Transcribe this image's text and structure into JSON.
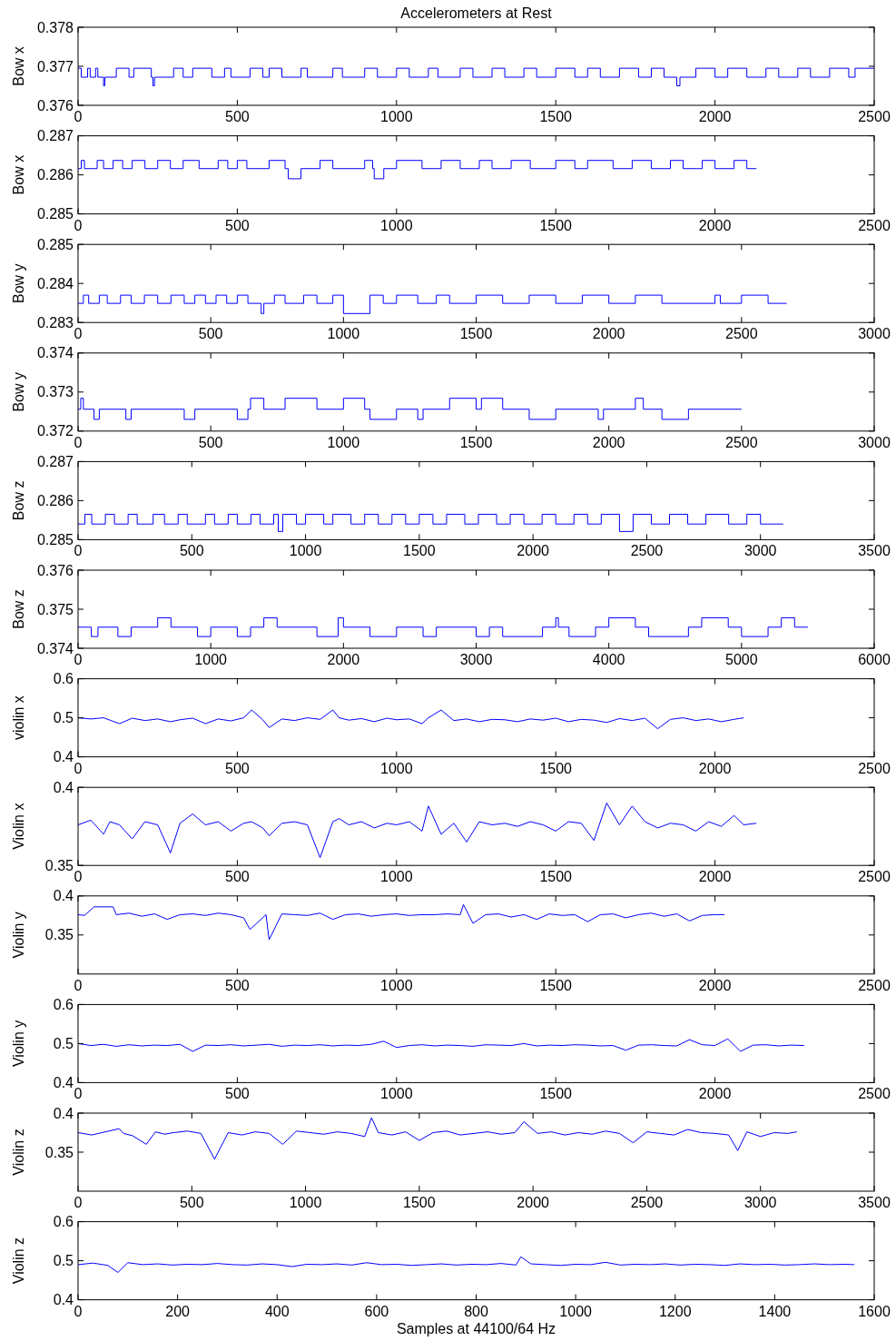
{
  "chart_data": [
    {
      "type": "step",
      "title": "Accelerometers at Rest",
      "ylabel": "Bow x",
      "xlim": [
        0,
        2500
      ],
      "xticks": [
        0,
        500,
        1000,
        1500,
        2000,
        2500
      ],
      "ylim": [
        0.376,
        0.378
      ],
      "yticks": [
        0.376,
        0.377,
        0.378
      ],
      "series": [
        {
          "color": "#0000ff",
          "x": [
            0,
            10,
            30,
            38,
            55,
            62,
            80,
            84,
            120,
            160,
            175,
            230,
            235,
            240,
            300,
            330,
            360,
            420,
            460,
            480,
            540,
            580,
            600,
            640,
            700,
            720,
            800,
            830,
            900,
            940,
            1000,
            1040,
            1100,
            1130,
            1200,
            1240,
            1300,
            1340,
            1400,
            1440,
            1500,
            1560,
            1600,
            1640,
            1700,
            1760,
            1800,
            1840,
            1880,
            1890,
            1940,
            2000,
            2040,
            2100,
            2160,
            2200,
            2260,
            2300,
            2360,
            2420,
            2440,
            2500
          ],
          "values": [
            0.37695,
            0.37672,
            0.37695,
            0.37672,
            0.37695,
            0.37672,
            0.3765,
            0.37672,
            0.37695,
            0.37672,
            0.37695,
            0.37672,
            0.3765,
            0.37672,
            0.37695,
            0.37672,
            0.37695,
            0.37672,
            0.37695,
            0.37672,
            0.37695,
            0.37672,
            0.37695,
            0.37672,
            0.37695,
            0.37672,
            0.37695,
            0.37672,
            0.37695,
            0.37672,
            0.37695,
            0.37672,
            0.37695,
            0.37672,
            0.37695,
            0.37672,
            0.37695,
            0.37672,
            0.37695,
            0.37672,
            0.37695,
            0.37672,
            0.37695,
            0.37672,
            0.37695,
            0.37672,
            0.37695,
            0.37672,
            0.3765,
            0.37672,
            0.37695,
            0.37672,
            0.37695,
            0.37672,
            0.37695,
            0.37672,
            0.37695,
            0.37672,
            0.37695,
            0.37672,
            0.37695,
            0.37695
          ]
        }
      ]
    },
    {
      "type": "step",
      "ylabel": "Bow x",
      "xlim": [
        0,
        2500
      ],
      "xticks": [
        0,
        500,
        1000,
        1500,
        2000,
        2500
      ],
      "ylim": [
        0.285,
        0.287
      ],
      "yticks": [
        0.285,
        0.286,
        0.287
      ],
      "series": [
        {
          "color": "#0000ff",
          "x": [
            0,
            10,
            20,
            60,
            80,
            110,
            140,
            170,
            210,
            250,
            290,
            330,
            380,
            440,
            470,
            500,
            530,
            600,
            650,
            660,
            700,
            760,
            800,
            900,
            925,
            930,
            960,
            1000,
            1080,
            1140,
            1200,
            1260,
            1300,
            1360,
            1420,
            1500,
            1560,
            1600,
            1680,
            1740,
            1800,
            1860,
            1900,
            1960,
            2000,
            2060,
            2100,
            2130
          ],
          "values": [
            0.28616,
            0.28637,
            0.28616,
            0.28637,
            0.28616,
            0.28637,
            0.28616,
            0.28637,
            0.28616,
            0.28637,
            0.28616,
            0.28637,
            0.28616,
            0.28637,
            0.28616,
            0.28637,
            0.28616,
            0.28637,
            0.28616,
            0.2859,
            0.28616,
            0.28637,
            0.28616,
            0.28637,
            0.28616,
            0.2859,
            0.28616,
            0.28637,
            0.28616,
            0.28637,
            0.28616,
            0.28637,
            0.28616,
            0.28637,
            0.28616,
            0.28637,
            0.28616,
            0.28637,
            0.28616,
            0.28637,
            0.28616,
            0.28637,
            0.28616,
            0.28637,
            0.28616,
            0.28637,
            0.28616,
            0.28616
          ]
        }
      ]
    },
    {
      "type": "step",
      "ylabel": "Bow y",
      "xlim": [
        0,
        3000
      ],
      "xticks": [
        0,
        500,
        1000,
        1500,
        2000,
        2500,
        3000
      ],
      "ylim": [
        0.283,
        0.285
      ],
      "yticks": [
        0.283,
        0.284,
        0.285
      ],
      "series": [
        {
          "color": "#0000ff",
          "x": [
            0,
            20,
            40,
            80,
            110,
            160,
            200,
            250,
            300,
            350,
            400,
            440,
            480,
            520,
            560,
            600,
            640,
            690,
            700,
            740,
            780,
            850,
            900,
            960,
            1000,
            1100,
            1150,
            1200,
            1280,
            1350,
            1400,
            1500,
            1600,
            1700,
            1800,
            1900,
            2000,
            2100,
            2200,
            2400,
            2420,
            2500,
            2600,
            2670
          ],
          "values": [
            0.28349,
            0.2837,
            0.28349,
            0.2837,
            0.28349,
            0.2837,
            0.28349,
            0.2837,
            0.28349,
            0.2837,
            0.28349,
            0.2837,
            0.28349,
            0.2837,
            0.28349,
            0.2837,
            0.28349,
            0.28323,
            0.28349,
            0.2837,
            0.28349,
            0.2837,
            0.28349,
            0.2837,
            0.28323,
            0.2837,
            0.28349,
            0.2837,
            0.28349,
            0.2837,
            0.28349,
            0.2837,
            0.28349,
            0.2837,
            0.28349,
            0.2837,
            0.28349,
            0.2837,
            0.28349,
            0.2837,
            0.28349,
            0.2837,
            0.28349,
            0.28349
          ]
        }
      ]
    },
    {
      "type": "step",
      "ylabel": "Bow y",
      "xlim": [
        0,
        3000
      ],
      "xticks": [
        0,
        500,
        1000,
        1500,
        2000,
        2500,
        3000
      ],
      "ylim": [
        0.372,
        0.374
      ],
      "yticks": [
        0.372,
        0.373,
        0.374
      ],
      "series": [
        {
          "color": "#0000ff",
          "x": [
            0,
            10,
            20,
            60,
            80,
            180,
            200,
            400,
            440,
            600,
            640,
            650,
            700,
            780,
            900,
            1000,
            1080,
            1100,
            1200,
            1280,
            1300,
            1400,
            1500,
            1520,
            1600,
            1700,
            1800,
            1960,
            1980,
            2100,
            2130,
            2200,
            2300,
            2500
          ],
          "values": [
            0.37256,
            0.37284,
            0.37256,
            0.3723,
            0.37256,
            0.3723,
            0.37256,
            0.3723,
            0.37256,
            0.3723,
            0.37256,
            0.37284,
            0.37256,
            0.37284,
            0.37256,
            0.37284,
            0.37256,
            0.3723,
            0.37256,
            0.3723,
            0.37256,
            0.37284,
            0.37256,
            0.37284,
            0.37256,
            0.3723,
            0.37256,
            0.3723,
            0.37256,
            0.37284,
            0.37256,
            0.3723,
            0.37256,
            0.37256
          ]
        }
      ]
    },
    {
      "type": "step",
      "ylabel": "Bow z",
      "xlim": [
        0,
        3500
      ],
      "xticks": [
        0,
        500,
        1000,
        1500,
        2000,
        2500,
        3000,
        3500
      ],
      "ylim": [
        0.285,
        0.287
      ],
      "yticks": [
        0.285,
        0.286,
        0.287
      ],
      "series": [
        {
          "color": "#0000ff",
          "x": [
            0,
            30,
            60,
            120,
            160,
            220,
            260,
            330,
            380,
            440,
            480,
            560,
            600,
            660,
            700,
            760,
            800,
            860,
            880,
            900,
            960,
            1000,
            1080,
            1120,
            1200,
            1260,
            1320,
            1380,
            1440,
            1500,
            1560,
            1620,
            1700,
            1760,
            1840,
            1900,
            1960,
            2040,
            2100,
            2180,
            2240,
            2300,
            2380,
            2440,
            2520,
            2600,
            2680,
            2760,
            2860,
            2940,
            3000,
            3100
          ],
          "values": [
            0.2854,
            0.28565,
            0.2854,
            0.28565,
            0.2854,
            0.28565,
            0.2854,
            0.28565,
            0.2854,
            0.28565,
            0.2854,
            0.28565,
            0.2854,
            0.28565,
            0.2854,
            0.28565,
            0.2854,
            0.28565,
            0.28521,
            0.28565,
            0.2854,
            0.28565,
            0.2854,
            0.28565,
            0.2854,
            0.28565,
            0.2854,
            0.28565,
            0.2854,
            0.28565,
            0.2854,
            0.28565,
            0.2854,
            0.28565,
            0.2854,
            0.28565,
            0.2854,
            0.28565,
            0.2854,
            0.28565,
            0.2854,
            0.28565,
            0.28521,
            0.28565,
            0.2854,
            0.28565,
            0.2854,
            0.28565,
            0.2854,
            0.28565,
            0.2854,
            0.2854
          ]
        }
      ]
    },
    {
      "type": "step",
      "ylabel": "Bow z",
      "xlim": [
        0,
        6000
      ],
      "xticks": [
        0,
        1000,
        2000,
        3000,
        4000,
        5000,
        6000
      ],
      "ylim": [
        0.374,
        0.376
      ],
      "yticks": [
        0.374,
        0.375,
        0.376
      ],
      "series": [
        {
          "color": "#0000ff",
          "x": [
            0,
            100,
            150,
            300,
            400,
            600,
            700,
            900,
            1000,
            1200,
            1300,
            1400,
            1500,
            1800,
            1960,
            2000,
            2200,
            2400,
            2600,
            2700,
            3000,
            3100,
            3200,
            3500,
            3600,
            3620,
            3700,
            3900,
            4000,
            4200,
            4300,
            4600,
            4700,
            4900,
            5000,
            5200,
            5300,
            5400,
            5500
          ],
          "values": [
            0.37454,
            0.3743,
            0.37454,
            0.3743,
            0.37454,
            0.37478,
            0.37454,
            0.3743,
            0.37454,
            0.3743,
            0.37454,
            0.37478,
            0.37454,
            0.3743,
            0.37478,
            0.37454,
            0.3743,
            0.37454,
            0.3743,
            0.37454,
            0.3743,
            0.37454,
            0.3743,
            0.37454,
            0.37478,
            0.37454,
            0.3743,
            0.37454,
            0.37478,
            0.37454,
            0.3743,
            0.37454,
            0.37478,
            0.37454,
            0.3743,
            0.37454,
            0.37478,
            0.37454,
            0.37454
          ]
        }
      ]
    },
    {
      "type": "line",
      "ylabel": "violin x",
      "xlim": [
        0,
        2500
      ],
      "xticks": [
        0,
        500,
        1000,
        1500,
        2000,
        2500
      ],
      "ylim": [
        0.4,
        0.6
      ],
      "yticks": [
        0.4,
        0.5,
        0.6
      ],
      "series": [
        {
          "color": "#0000ff",
          "x": [
            0,
            40,
            80,
            100,
            130,
            170,
            210,
            250,
            290,
            320,
            360,
            400,
            440,
            480,
            520,
            545,
            580,
            600,
            640,
            680,
            720,
            760,
            800,
            820,
            850,
            890,
            930,
            970,
            1000,
            1040,
            1080,
            1100,
            1140,
            1180,
            1220,
            1260,
            1300,
            1340,
            1380,
            1420,
            1460,
            1500,
            1540,
            1580,
            1620,
            1660,
            1700,
            1740,
            1780,
            1820,
            1860,
            1900,
            1940,
            1980,
            2020,
            2060,
            2090
          ],
          "values": [
            0.5,
            0.497,
            0.5,
            0.494,
            0.485,
            0.499,
            0.493,
            0.497,
            0.49,
            0.495,
            0.499,
            0.485,
            0.497,
            0.492,
            0.5,
            0.52,
            0.495,
            0.475,
            0.497,
            0.493,
            0.5,
            0.496,
            0.52,
            0.5,
            0.494,
            0.498,
            0.49,
            0.499,
            0.495,
            0.497,
            0.485,
            0.5,
            0.52,
            0.493,
            0.497,
            0.49,
            0.496,
            0.495,
            0.49,
            0.497,
            0.494,
            0.499,
            0.49,
            0.496,
            0.494,
            0.488,
            0.498,
            0.493,
            0.499,
            0.472,
            0.496,
            0.5,
            0.493,
            0.497,
            0.49,
            0.496,
            0.5
          ]
        }
      ]
    },
    {
      "type": "line",
      "ylabel": "Violin x",
      "xlim": [
        0,
        2500
      ],
      "xticks": [
        0,
        500,
        1000,
        1500,
        2000,
        2500
      ],
      "ylim": [
        0.35,
        0.4
      ],
      "yticks": [
        0.35,
        0.4
      ],
      "series": [
        {
          "color": "#0000ff",
          "x": [
            0,
            40,
            80,
            100,
            130,
            170,
            210,
            250,
            290,
            320,
            360,
            400,
            440,
            480,
            520,
            545,
            580,
            600,
            640,
            680,
            720,
            760,
            800,
            820,
            850,
            890,
            930,
            970,
            1000,
            1040,
            1080,
            1100,
            1140,
            1180,
            1220,
            1260,
            1300,
            1340,
            1380,
            1420,
            1460,
            1500,
            1540,
            1580,
            1620,
            1660,
            1700,
            1740,
            1780,
            1820,
            1860,
            1900,
            1940,
            1980,
            2020,
            2060,
            2090,
            2130
          ],
          "values": [
            0.376,
            0.379,
            0.37,
            0.378,
            0.376,
            0.367,
            0.378,
            0.376,
            0.358,
            0.377,
            0.383,
            0.376,
            0.378,
            0.372,
            0.377,
            0.378,
            0.374,
            0.369,
            0.377,
            0.378,
            0.376,
            0.355,
            0.378,
            0.38,
            0.376,
            0.378,
            0.374,
            0.377,
            0.376,
            0.378,
            0.372,
            0.388,
            0.37,
            0.377,
            0.365,
            0.378,
            0.376,
            0.377,
            0.375,
            0.378,
            0.376,
            0.372,
            0.378,
            0.377,
            0.366,
            0.39,
            0.376,
            0.388,
            0.378,
            0.374,
            0.377,
            0.376,
            0.372,
            0.378,
            0.375,
            0.382,
            0.376,
            0.377
          ]
        }
      ]
    },
    {
      "type": "line",
      "ylabel": "Violin y",
      "xlim": [
        0,
        2500
      ],
      "xticks": [
        0,
        500,
        1000,
        1500,
        2000,
        2500
      ],
      "ylim": [
        0.3,
        0.4
      ],
      "yticks": [
        0.35,
        0.4
      ],
      "series": [
        {
          "color": "#0000ff",
          "x": [
            0,
            20,
            50,
            110,
            120,
            160,
            200,
            240,
            280,
            320,
            360,
            400,
            440,
            480,
            520,
            540,
            590,
            600,
            640,
            680,
            720,
            760,
            800,
            840,
            880,
            920,
            960,
            1000,
            1040,
            1080,
            1120,
            1160,
            1200,
            1210,
            1240,
            1280,
            1320,
            1360,
            1400,
            1440,
            1480,
            1520,
            1560,
            1600,
            1640,
            1680,
            1720,
            1760,
            1800,
            1840,
            1880,
            1920,
            1960,
            2000,
            2030
          ],
          "values": [
            0.376,
            0.375,
            0.386,
            0.386,
            0.376,
            0.378,
            0.374,
            0.377,
            0.37,
            0.376,
            0.377,
            0.375,
            0.378,
            0.376,
            0.372,
            0.357,
            0.376,
            0.344,
            0.377,
            0.376,
            0.375,
            0.378,
            0.37,
            0.376,
            0.377,
            0.374,
            0.376,
            0.377,
            0.375,
            0.376,
            0.376,
            0.377,
            0.376,
            0.389,
            0.365,
            0.376,
            0.377,
            0.373,
            0.376,
            0.37,
            0.377,
            0.375,
            0.376,
            0.367,
            0.376,
            0.377,
            0.372,
            0.376,
            0.378,
            0.374,
            0.377,
            0.368,
            0.375,
            0.376,
            0.376
          ]
        }
      ]
    },
    {
      "type": "line",
      "ylabel": "Violin y",
      "xlim": [
        0,
        2500
      ],
      "xticks": [
        0,
        500,
        1000,
        1500,
        2000,
        2500
      ],
      "ylim": [
        0.4,
        0.6
      ],
      "yticks": [
        0.4,
        0.5,
        0.6
      ],
      "series": [
        {
          "color": "#0000ff",
          "x": [
            0,
            40,
            80,
            120,
            160,
            200,
            240,
            280,
            320,
            360,
            400,
            440,
            480,
            520,
            560,
            600,
            640,
            680,
            720,
            760,
            800,
            840,
            880,
            920,
            960,
            1000,
            1040,
            1080,
            1120,
            1160,
            1200,
            1240,
            1280,
            1320,
            1360,
            1400,
            1440,
            1480,
            1520,
            1560,
            1600,
            1640,
            1680,
            1720,
            1760,
            1800,
            1840,
            1880,
            1920,
            1960,
            2000,
            2040,
            2080,
            2120,
            2160,
            2200,
            2240,
            2280
          ],
          "values": [
            0.5,
            0.495,
            0.498,
            0.493,
            0.497,
            0.494,
            0.496,
            0.495,
            0.498,
            0.48,
            0.496,
            0.495,
            0.497,
            0.494,
            0.496,
            0.498,
            0.493,
            0.496,
            0.495,
            0.497,
            0.494,
            0.496,
            0.495,
            0.498,
            0.506,
            0.49,
            0.495,
            0.497,
            0.494,
            0.496,
            0.495,
            0.493,
            0.497,
            0.496,
            0.495,
            0.5,
            0.494,
            0.496,
            0.495,
            0.497,
            0.496,
            0.494,
            0.495,
            0.483,
            0.496,
            0.497,
            0.495,
            0.494,
            0.51,
            0.497,
            0.495,
            0.512,
            0.48,
            0.496,
            0.497,
            0.494,
            0.496,
            0.495
          ]
        }
      ]
    },
    {
      "type": "line",
      "ylabel": "Violin z",
      "xlim": [
        0,
        3500
      ],
      "xticks": [
        0,
        500,
        1000,
        1500,
        2000,
        2500,
        3000,
        3500
      ],
      "ylim": [
        0.3,
        0.4
      ],
      "yticks": [
        0.35,
        0.4
      ],
      "series": [
        {
          "color": "#0000ff",
          "x": [
            0,
            60,
            120,
            180,
            200,
            240,
            300,
            340,
            380,
            420,
            480,
            540,
            600,
            660,
            720,
            780,
            840,
            900,
            960,
            1020,
            1080,
            1140,
            1200,
            1260,
            1290,
            1320,
            1380,
            1440,
            1500,
            1560,
            1620,
            1680,
            1740,
            1800,
            1860,
            1920,
            1960,
            2020,
            2080,
            2140,
            2200,
            2260,
            2320,
            2380,
            2440,
            2500,
            2560,
            2620,
            2680,
            2740,
            2800,
            2860,
            2900,
            2940,
            3000,
            3060,
            3120,
            3160
          ],
          "values": [
            0.375,
            0.372,
            0.376,
            0.38,
            0.374,
            0.371,
            0.36,
            0.376,
            0.373,
            0.375,
            0.377,
            0.374,
            0.341,
            0.375,
            0.372,
            0.376,
            0.374,
            0.36,
            0.377,
            0.375,
            0.373,
            0.376,
            0.374,
            0.37,
            0.394,
            0.375,
            0.372,
            0.376,
            0.365,
            0.375,
            0.377,
            0.372,
            0.374,
            0.376,
            0.373,
            0.375,
            0.389,
            0.374,
            0.376,
            0.372,
            0.375,
            0.373,
            0.377,
            0.374,
            0.362,
            0.376,
            0.374,
            0.372,
            0.379,
            0.375,
            0.374,
            0.372,
            0.352,
            0.376,
            0.37,
            0.375,
            0.374,
            0.376
          ]
        }
      ]
    },
    {
      "type": "line",
      "ylabel": "Violin z",
      "xlabel": "Samples at 44100/64 Hz",
      "xlim": [
        0,
        1600
      ],
      "xticks": [
        0,
        200,
        400,
        600,
        800,
        1000,
        1200,
        1400,
        1600
      ],
      "ylim": [
        0.4,
        0.6
      ],
      "yticks": [
        0.4,
        0.5,
        0.6
      ],
      "series": [
        {
          "color": "#0000ff",
          "x": [
            0,
            30,
            60,
            80,
            100,
            130,
            160,
            190,
            220,
            250,
            280,
            310,
            340,
            370,
            400,
            430,
            460,
            490,
            520,
            550,
            580,
            610,
            640,
            670,
            700,
            730,
            760,
            790,
            820,
            850,
            880,
            890,
            910,
            940,
            970,
            1000,
            1030,
            1060,
            1090,
            1120,
            1150,
            1180,
            1210,
            1240,
            1270,
            1300,
            1330,
            1360,
            1390,
            1420,
            1450,
            1480,
            1510,
            1540,
            1560
          ],
          "values": [
            0.49,
            0.494,
            0.488,
            0.47,
            0.495,
            0.49,
            0.492,
            0.489,
            0.491,
            0.49,
            0.493,
            0.49,
            0.489,
            0.492,
            0.49,
            0.485,
            0.491,
            0.49,
            0.492,
            0.489,
            0.495,
            0.49,
            0.491,
            0.488,
            0.49,
            0.492,
            0.489,
            0.491,
            0.49,
            0.493,
            0.489,
            0.51,
            0.492,
            0.49,
            0.488,
            0.491,
            0.49,
            0.496,
            0.489,
            0.491,
            0.49,
            0.492,
            0.489,
            0.491,
            0.49,
            0.488,
            0.492,
            0.49,
            0.491,
            0.489,
            0.49,
            0.492,
            0.49,
            0.491,
            0.49
          ]
        }
      ]
    }
  ]
}
